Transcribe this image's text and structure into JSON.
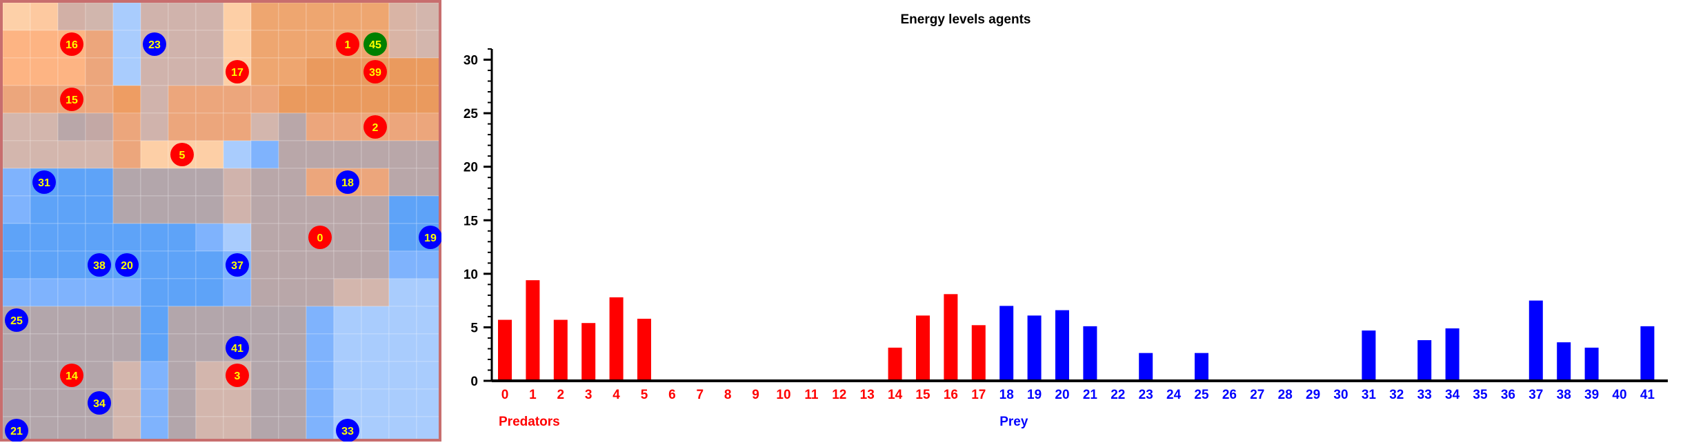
{
  "grid": {
    "rows": 16,
    "cols": 16,
    "cell_colors": [
      [
        "#fdd0a8",
        "#fdc9a0",
        "#d2b0a6",
        "#d1b6ad",
        "#a9ccfd",
        "#d0b3ac",
        "#d0b3ac",
        "#d0b3ac",
        "#fdcfa6",
        "#eea670",
        "#eea670",
        "#eea670",
        "#eea670",
        "#eea670",
        "#d9b4a5",
        "#d3b6ad"
      ],
      [
        "#fdb483",
        "#fdb483",
        "#fdb483",
        "#eca67c",
        "#a9ccfd",
        "#d0b3ac",
        "#d0b3ac",
        "#d0b3ac",
        "#fdcfa6",
        "#eea670",
        "#eea670",
        "#eea670",
        "#eea670",
        "#eea670",
        "#d9b4a5",
        "#d3b6ad"
      ],
      [
        "#fdb483",
        "#fdb483",
        "#fdb483",
        "#eca67c",
        "#a9ccfd",
        "#d0b3ac",
        "#d0b3ac",
        "#d0b3ac",
        "#fdcfa6",
        "#eea670",
        "#eea670",
        "#ea9a5e",
        "#ea9a5e",
        "#ea9a5e",
        "#ea9a5e",
        "#ea9a5e"
      ],
      [
        "#eca67c",
        "#eca67c",
        "#eca67c",
        "#eca67c",
        "#ee9d63",
        "#d0b3ac",
        "#eca67c",
        "#eca67c",
        "#eca67c",
        "#eca67c",
        "#ea9a5e",
        "#ea9a5e",
        "#ea9a5e",
        "#ea9a5e",
        "#ea9a5e",
        "#ea9a5e"
      ],
      [
        "#d3b6ad",
        "#d3b6ad",
        "#b9a7a9",
        "#c3a8a5",
        "#eca67c",
        "#d0b3ac",
        "#eca67c",
        "#eca67c",
        "#eca67c",
        "#d3b6ad",
        "#b9a7a9",
        "#eca67c",
        "#eca67c",
        "#eca67c",
        "#eca67c",
        "#eca67c"
      ],
      [
        "#d3b6ad",
        "#d3b6ad",
        "#d3b6ad",
        "#d3b6ad",
        "#eca67c",
        "#fdcfa6",
        "#fdcfa6",
        "#fdcfa6",
        "#a9ccfd",
        "#7fb3fd",
        "#b9a7a9",
        "#b9a7a9",
        "#b9a7a9",
        "#b9a7a9",
        "#b9a7a9",
        "#b9a7a9"
      ],
      [
        "#7fb3fd",
        "#5ea3f8",
        "#5ea3f8",
        "#5ea3f8",
        "#b3a6ab",
        "#b3a6ab",
        "#b3a6ab",
        "#b3a6ab",
        "#d0b3ac",
        "#b9a7a9",
        "#b9a7a9",
        "#eca67c",
        "#eca67c",
        "#eca67c",
        "#b9a7a9",
        "#b9a7a9"
      ],
      [
        "#7fb3fd",
        "#5ea3f8",
        "#5ea3f8",
        "#5ea3f8",
        "#b3a6ab",
        "#b3a6ab",
        "#b3a6ab",
        "#b3a6ab",
        "#d0b3ac",
        "#b9a7a9",
        "#b9a7a9",
        "#b9a7a9",
        "#b9a7a9",
        "#b9a7a9",
        "#5ea3f8",
        "#5ea3f8"
      ],
      [
        "#5ea3f8",
        "#5ea3f8",
        "#5ea3f8",
        "#5ea3f8",
        "#5ea3f8",
        "#5ea3f8",
        "#5ea3f8",
        "#7fb3fd",
        "#a9ccfd",
        "#b9a7a9",
        "#b9a7a9",
        "#b9a7a9",
        "#b9a7a9",
        "#b9a7a9",
        "#5ea3f8",
        "#5ea3f8"
      ],
      [
        "#5ea3f8",
        "#5ea3f8",
        "#5ea3f8",
        "#5ea3f8",
        "#5ea3f8",
        "#5ea3f8",
        "#5ea3f8",
        "#5ea3f8",
        "#7fb3fd",
        "#b9a7a9",
        "#b9a7a9",
        "#b9a7a9",
        "#b9a7a9",
        "#b9a7a9",
        "#7fb3fd",
        "#7fb3fd"
      ],
      [
        "#7fb3fd",
        "#7fb3fd",
        "#7fb3fd",
        "#7fb3fd",
        "#7fb3fd",
        "#5ea3f8",
        "#5ea3f8",
        "#5ea3f8",
        "#7fb3fd",
        "#b9a7a9",
        "#b9a7a9",
        "#b9a7a9",
        "#d3b6ad",
        "#d3b6ad",
        "#a9ccfd",
        "#a9ccfd"
      ],
      [
        "#b3a6ab",
        "#b3a6ab",
        "#b3a6ab",
        "#b3a6ab",
        "#b3a6ab",
        "#5ea3f8",
        "#b3a6ab",
        "#b3a6ab",
        "#b3a6ab",
        "#b3a6ab",
        "#b3a6ab",
        "#7fb3fd",
        "#a9ccfd",
        "#a9ccfd",
        "#a9ccfd",
        "#a9ccfd"
      ],
      [
        "#b3a6ab",
        "#b3a6ab",
        "#b3a6ab",
        "#b3a6ab",
        "#b3a6ab",
        "#5ea3f8",
        "#b3a6ab",
        "#b3a6ab",
        "#b3a6ab",
        "#b3a6ab",
        "#b3a6ab",
        "#7fb3fd",
        "#a9ccfd",
        "#a9ccfd",
        "#a9ccfd",
        "#a9ccfd"
      ],
      [
        "#b3a6ab",
        "#b3a6ab",
        "#b3a6ab",
        "#b3a6ab",
        "#d3b6ad",
        "#7fb3fd",
        "#b3a6ab",
        "#d3b6ad",
        "#d3b6ad",
        "#b3a6ab",
        "#b3a6ab",
        "#7fb3fd",
        "#a9ccfd",
        "#a9ccfd",
        "#a9ccfd",
        "#a9ccfd"
      ],
      [
        "#b3a6ab",
        "#b3a6ab",
        "#b3a6ab",
        "#b3a6ab",
        "#d3b6ad",
        "#7fb3fd",
        "#b3a6ab",
        "#d3b6ad",
        "#d3b6ad",
        "#b3a6ab",
        "#b3a6ab",
        "#7fb3fd",
        "#a9ccfd",
        "#a9ccfd",
        "#a9ccfd",
        "#a9ccfd"
      ],
      [
        "#b3a6ab",
        "#b3a6ab",
        "#b3a6ab",
        "#b3a6ab",
        "#d3b6ad",
        "#7fb3fd",
        "#b3a6ab",
        "#d3b6ad",
        "#d3b6ad",
        "#b3a6ab",
        "#b3a6ab",
        "#7fb3fd",
        "#a9ccfd",
        "#a9ccfd",
        "#a9ccfd",
        "#a9ccfd"
      ]
    ],
    "agents": [
      {
        "label": "16",
        "kind": "predator",
        "col": 2,
        "row": 1
      },
      {
        "label": "23",
        "kind": "prey",
        "col": 5,
        "row": 1
      },
      {
        "label": "1",
        "kind": "predator",
        "col": 12,
        "row": 1
      },
      {
        "label": "45",
        "kind": "other",
        "col": 13,
        "row": 1
      },
      {
        "label": "17",
        "kind": "predator",
        "col": 8,
        "row": 2
      },
      {
        "label": "39",
        "kind": "predator",
        "col": 13,
        "row": 2
      },
      {
        "label": "15",
        "kind": "predator",
        "col": 2,
        "row": 3
      },
      {
        "label": "2",
        "kind": "predator",
        "col": 13,
        "row": 4
      },
      {
        "label": "5",
        "kind": "predator",
        "col": 6,
        "row": 5
      },
      {
        "label": "31",
        "kind": "prey",
        "col": 1,
        "row": 6
      },
      {
        "label": "18",
        "kind": "prey",
        "col": 12,
        "row": 6
      },
      {
        "label": "0",
        "kind": "predator",
        "col": 11,
        "row": 8
      },
      {
        "label": "19",
        "kind": "prey",
        "col": 15,
        "row": 8
      },
      {
        "label": "38",
        "kind": "prey",
        "col": 3,
        "row": 9
      },
      {
        "label": "20",
        "kind": "prey",
        "col": 4,
        "row": 9
      },
      {
        "label": "37",
        "kind": "prey",
        "col": 8,
        "row": 9
      },
      {
        "label": "25",
        "kind": "prey",
        "col": 0,
        "row": 11
      },
      {
        "label": "41",
        "kind": "prey",
        "col": 8,
        "row": 12
      },
      {
        "label": "14",
        "kind": "predator",
        "col": 2,
        "row": 13
      },
      {
        "label": "3",
        "kind": "predator",
        "col": 8,
        "row": 13
      },
      {
        "label": "34",
        "kind": "prey",
        "col": 3,
        "row": 14
      },
      {
        "label": "21",
        "kind": "prey",
        "col": 0,
        "row": 15
      },
      {
        "label": "33",
        "kind": "prey",
        "col": 12,
        "row": 15
      }
    ],
    "colors": {
      "predator": "#ff0000",
      "prey": "#0000ff",
      "other": "#008000",
      "label": "#ffff00",
      "border": "#c86e6e"
    }
  },
  "chart_data": {
    "type": "bar",
    "title": "Energy levels agents",
    "xlabel": "",
    "ylabel": "",
    "ylim": [
      0,
      31
    ],
    "yticks": [
      0,
      5,
      10,
      15,
      20,
      25,
      30
    ],
    "categories": [
      "0",
      "1",
      "2",
      "3",
      "4",
      "5",
      "6",
      "7",
      "8",
      "9",
      "10",
      "11",
      "12",
      "13",
      "14",
      "15",
      "16",
      "17",
      "18",
      "19",
      "20",
      "21",
      "22",
      "23",
      "24",
      "25",
      "26",
      "27",
      "28",
      "29",
      "30",
      "31",
      "32",
      "33",
      "34",
      "35",
      "36",
      "37",
      "38",
      "39",
      "40",
      "41"
    ],
    "values": [
      5.7,
      9.4,
      5.7,
      5.4,
      7.8,
      5.8,
      0,
      0,
      0,
      0,
      0,
      0,
      0,
      0,
      3.1,
      6.1,
      8.1,
      5.2,
      7.0,
      6.1,
      6.6,
      5.1,
      0,
      2.6,
      0,
      2.6,
      0,
      0,
      0,
      0,
      0,
      4.7,
      0,
      3.8,
      4.9,
      0,
      0,
      7.5,
      3.6,
      3.1,
      0,
      5.1
    ],
    "predator_count": 18,
    "group_labels": [
      {
        "text": "Predators",
        "color": "#ff0000"
      },
      {
        "text": "Prey",
        "color": "#0000ff"
      }
    ],
    "colors": {
      "predators": "#ff0000",
      "prey": "#0000ff",
      "axis": "#000000"
    },
    "grid": false
  }
}
